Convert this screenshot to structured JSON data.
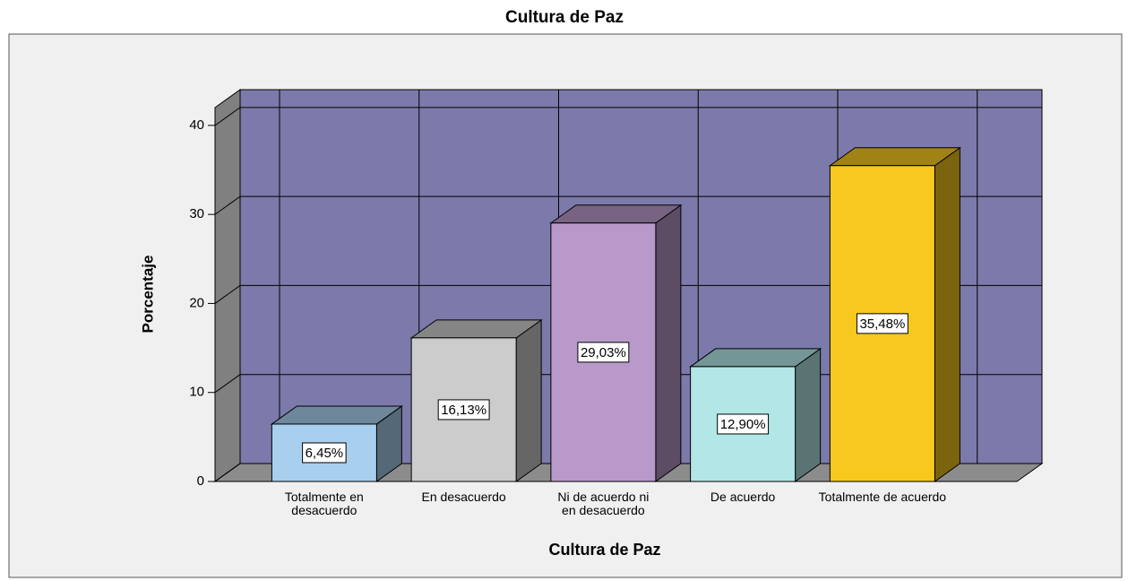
{
  "chart_data": {
    "type": "bar3d",
    "title": "Cultura de Paz",
    "x_label": "Cultura de Paz",
    "y_label": "Porcentaje",
    "categories": [
      "Totalmente en desacuerdo",
      "En desacuerdo",
      "Ni de acuerdo ni en desacuerdo",
      "De acuerdo",
      "Totalmente de acuerdo"
    ],
    "values": [
      6.45,
      16.13,
      29.03,
      12.9,
      35.48
    ],
    "value_labels": [
      "6,45%",
      "16,13%",
      "29,03%",
      "12,90%",
      "35,48%"
    ],
    "colors": [
      "#a9cfee",
      "#cccccc",
      "#b899c9",
      "#b3e6e6",
      "#f7c81e"
    ],
    "ylim": [
      0,
      42
    ],
    "yticks": [
      0,
      10,
      20,
      30,
      40
    ],
    "grid": true
  }
}
